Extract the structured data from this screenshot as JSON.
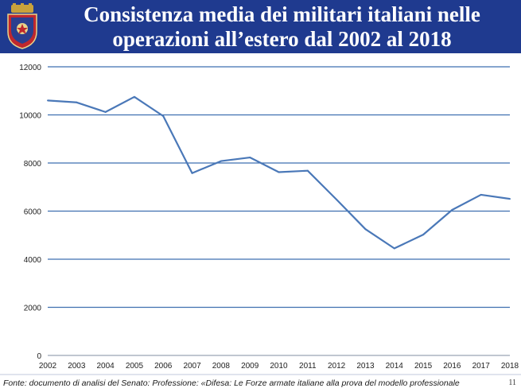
{
  "header": {
    "title_line1": "Consistenza media dei militari italiani nelle",
    "title_line2": "operazioni all’estero dal 2002 al 2018"
  },
  "colors": {
    "header_bg": "#1f3a8f",
    "line": "#4a78b8",
    "grid": "#3f6fb0"
  },
  "icons": {
    "emblem": "italian-army-coat-of-arms-icon"
  },
  "chart_data": {
    "type": "line",
    "categories": [
      "2002",
      "2003",
      "2004",
      "2005",
      "2006",
      "2007",
      "2008",
      "2009",
      "2010",
      "2011",
      "2012",
      "2013",
      "2014",
      "2015",
      "2016",
      "2017",
      "2018"
    ],
    "values": [
      10600,
      10520,
      10120,
      10750,
      9950,
      7580,
      8080,
      8230,
      7620,
      7680,
      6480,
      5250,
      4450,
      5020,
      6050,
      6680,
      6510
    ],
    "ylim": [
      0,
      12000
    ],
    "yticks": [
      0,
      2000,
      4000,
      6000,
      8000,
      10000,
      12000
    ],
    "grid": true,
    "title": "",
    "xlabel": "",
    "ylabel": ""
  },
  "footer": {
    "source": "Fonte: documento di analisi del Senato: Professione: «Difesa: Le Forze armate italiane alla prova del modello professionale",
    "page_number": "11"
  }
}
